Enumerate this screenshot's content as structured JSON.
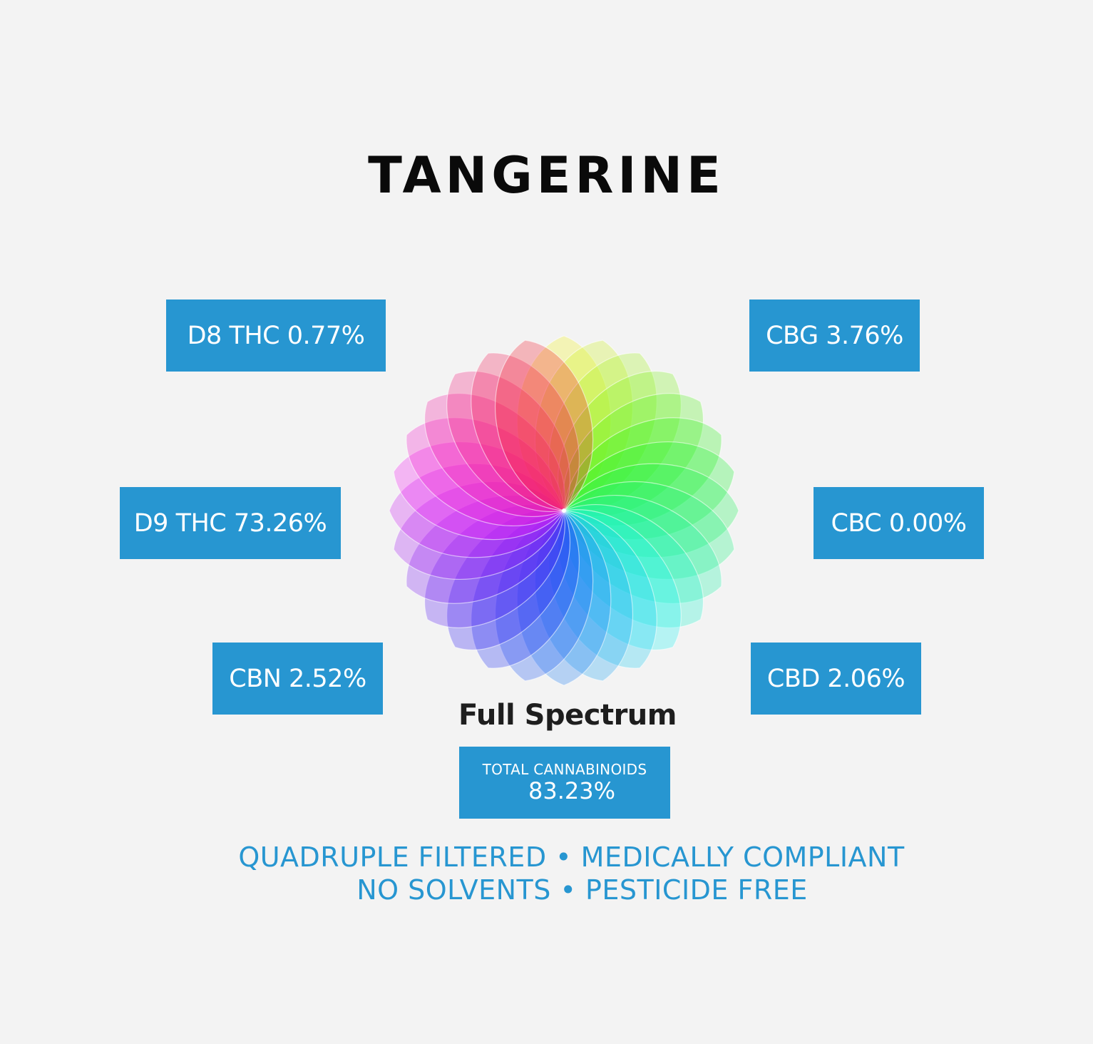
{
  "title": "TANGERINE",
  "cannabinoids": {
    "d8": "D8 THC 0.77%",
    "d9": "D9 THC 73.26%",
    "cbn": "CBN 2.52%",
    "cbg": "CBG 3.76%",
    "cbc": "CBC 0.00%",
    "cbd": "CBD 2.06%"
  },
  "logo_text": "Full Spectrum",
  "total": {
    "label": "TOTAL CANNABINOIDS",
    "value": "83.23%"
  },
  "tagline": {
    "line1": "QUADRUPLE FILTERED • MEDICALLY COMPLIANT",
    "line2": "NO SOLVENTS • PESTICIDE FREE"
  },
  "colors": {
    "accent": "#2796d1",
    "background": "#f3f3f3"
  }
}
